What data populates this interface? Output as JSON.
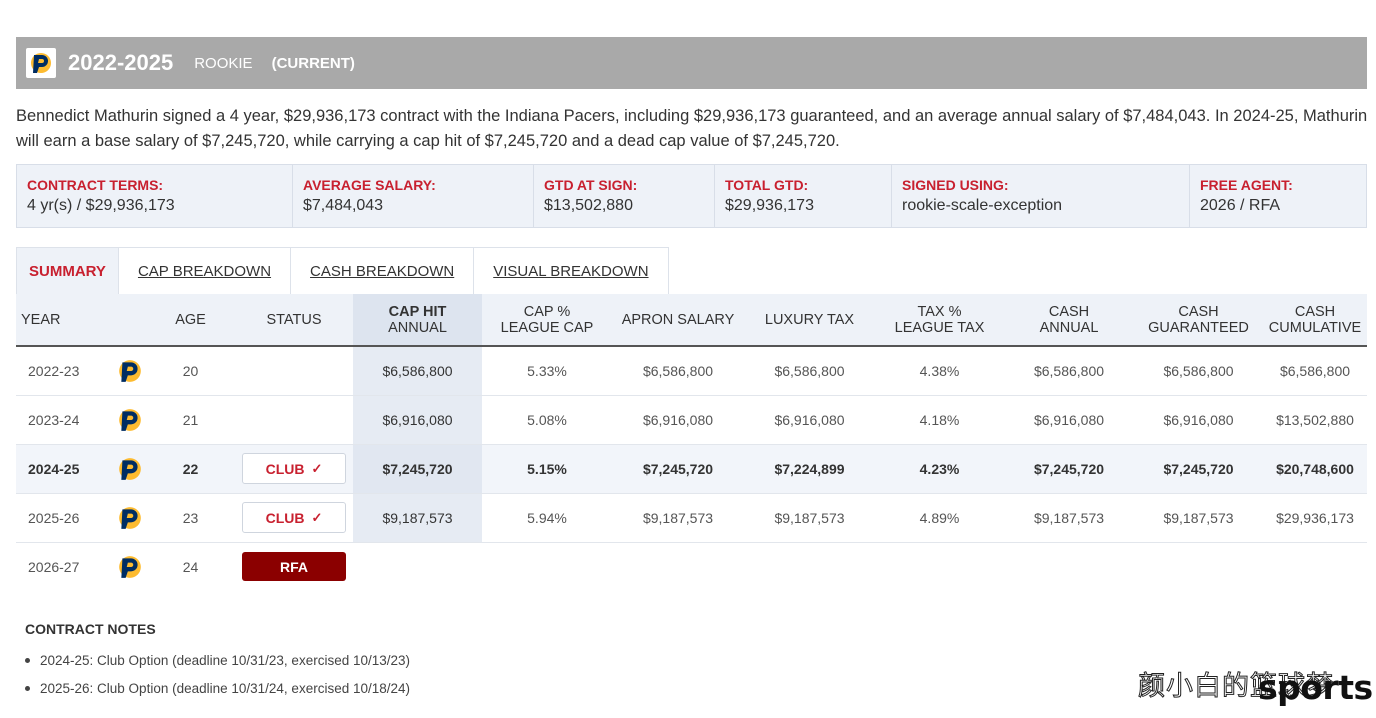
{
  "header": {
    "years": "2022-2025",
    "type": "ROOKIE",
    "current": "(CURRENT)",
    "colors": {
      "bar": "#a9a9a9",
      "team_navy": "#002d62",
      "team_gold": "#fdbb30"
    }
  },
  "description": "Bennedict Mathurin signed a 4 year, $29,936,173 contract with the Indiana Pacers, including $29,936,173 guaranteed, and an average annual salary of $7,484,043. In 2024-25, Mathurin will earn a base salary of $7,245,720, while carrying a cap hit of $7,245,720 and a dead cap value of $7,245,720.",
  "terms": [
    {
      "label": "CONTRACT TERMS:",
      "value": "4 yr(s) / $29,936,173"
    },
    {
      "label": "AVERAGE SALARY:",
      "value": "$7,484,043"
    },
    {
      "label": "GTD AT SIGN:",
      "value": "$13,502,880"
    },
    {
      "label": "TOTAL GTD:",
      "value": "$29,936,173"
    },
    {
      "label": "SIGNED USING:",
      "value": "rookie-scale-exception"
    },
    {
      "label": "FREE AGENT:",
      "value": "2026 / RFA"
    }
  ],
  "tabs": [
    {
      "label": "SUMMARY",
      "active": true
    },
    {
      "label": "CAP BREAKDOWN"
    },
    {
      "label": "CASH BREAKDOWN"
    },
    {
      "label": "VISUAL BREAKDOWN"
    }
  ],
  "columns": {
    "year": "YEAR",
    "age": "AGE",
    "status": "STATUS",
    "cap_hit_1": "CAP HIT",
    "cap_hit_2": "ANNUAL",
    "cap_pct_1": "CAP %",
    "cap_pct_2": "LEAGUE CAP",
    "apron": "APRON SALARY",
    "lux": "LUXURY TAX",
    "tax_pct_1": "TAX %",
    "tax_pct_2": "LEAGUE TAX",
    "cash_annual_1": "CASH",
    "cash_annual_2": "ANNUAL",
    "cash_gtd_1": "CASH",
    "cash_gtd_2": "GUARANTEED",
    "cash_cum_1": "CASH",
    "cash_cum_2": "CUMULATIVE"
  },
  "rows": [
    {
      "year": "2022-23",
      "age": "20",
      "status": "",
      "cap_hit": "$6,586,800",
      "cap_pct": "5.33%",
      "apron": "$6,586,800",
      "lux": "$6,586,800",
      "tax_pct": "4.38%",
      "cash_annual": "$6,586,800",
      "cash_gtd": "$6,586,800",
      "cash_cum": "$6,586,800"
    },
    {
      "year": "2023-24",
      "age": "21",
      "status": "",
      "cap_hit": "$6,916,080",
      "cap_pct": "5.08%",
      "apron": "$6,916,080",
      "lux": "$6,916,080",
      "tax_pct": "4.18%",
      "cash_annual": "$6,916,080",
      "cash_gtd": "$6,916,080",
      "cash_cum": "$13,502,880"
    },
    {
      "year": "2024-25",
      "age": "22",
      "status": "CLUB",
      "cap_hit": "$7,245,720",
      "cap_pct": "5.15%",
      "apron": "$7,245,720",
      "lux": "$7,224,899",
      "tax_pct": "4.23%",
      "cash_annual": "$7,245,720",
      "cash_gtd": "$7,245,720",
      "cash_cum": "$20,748,600"
    },
    {
      "year": "2025-26",
      "age": "23",
      "status": "CLUB",
      "cap_hit": "$9,187,573",
      "cap_pct": "5.94%",
      "apron": "$9,187,573",
      "lux": "$9,187,573",
      "tax_pct": "4.89%",
      "cash_annual": "$9,187,573",
      "cash_gtd": "$9,187,573",
      "cash_cum": "$29,936,173"
    },
    {
      "year": "2026-27",
      "age": "24",
      "status": "RFA"
    }
  ],
  "notes": {
    "title": "CONTRACT NOTES",
    "items": [
      "2024-25: Club Option (deadline 10/31/23, exercised 10/13/23)",
      "2025-26: Club Option (deadline 10/31/24, exercised 10/18/24)"
    ]
  },
  "watermark": {
    "cn": "颜小白的篮球梦",
    "en": "sports"
  }
}
